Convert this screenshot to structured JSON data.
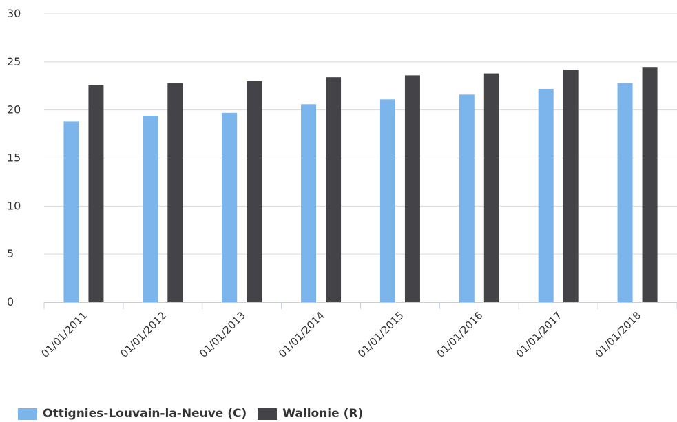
{
  "chart_data": {
    "type": "bar",
    "categories": [
      "01/01/2011",
      "01/01/2012",
      "01/01/2013",
      "01/01/2014",
      "01/01/2015",
      "01/01/2016",
      "01/01/2017",
      "01/01/2018"
    ],
    "series": [
      {
        "name": "Ottignies-Louvain-la-Neuve (C)",
        "color": "#7cb5ec",
        "values": [
          18.8,
          19.4,
          19.7,
          20.6,
          21.1,
          21.6,
          22.2,
          22.8
        ]
      },
      {
        "name": "Wallonie (R)",
        "color": "#434348",
        "values": [
          22.6,
          22.8,
          23.0,
          23.4,
          23.6,
          23.8,
          24.2,
          24.4
        ]
      }
    ],
    "yticks": [
      "0",
      "5",
      "10",
      "15",
      "20",
      "25",
      "30"
    ],
    "ylim": [
      0,
      30
    ],
    "grid": true,
    "legend_position": "bottom-left"
  }
}
